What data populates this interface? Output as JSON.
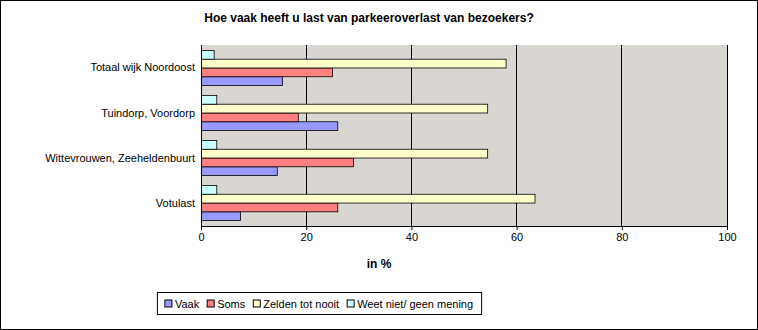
{
  "chart_data": {
    "type": "bar",
    "orientation": "horizontal",
    "title": "Hoe vaak heeft u last van parkeeroverlast van bezoekers?",
    "x_label": "in %",
    "categories": [
      "Totaal wijk Noordoost",
      "Tuindorp, Voordorp",
      "Wittevrouwen, Zeeheldenbuurt",
      "Votulast"
    ],
    "series": [
      {
        "name": "Vaak",
        "color": "#9999ff",
        "values": [
          15.5,
          26,
          14.5,
          7.5
        ]
      },
      {
        "name": "Soms",
        "color": "#ff8080",
        "values": [
          25,
          18.5,
          29,
          26
        ]
      },
      {
        "name": "Zelden tot nooit",
        "color": "#ffffcc",
        "values": [
          58,
          54.5,
          54.5,
          63.5
        ]
      },
      {
        "name": "Weet niet/ geen mening",
        "color": "#ccffff",
        "values": [
          2.5,
          3,
          3,
          3
        ]
      }
    ],
    "xlim": [
      0,
      100
    ],
    "xticks": [
      0,
      20,
      40,
      60,
      80,
      100
    ],
    "grid": true,
    "legend": "bottom"
  }
}
